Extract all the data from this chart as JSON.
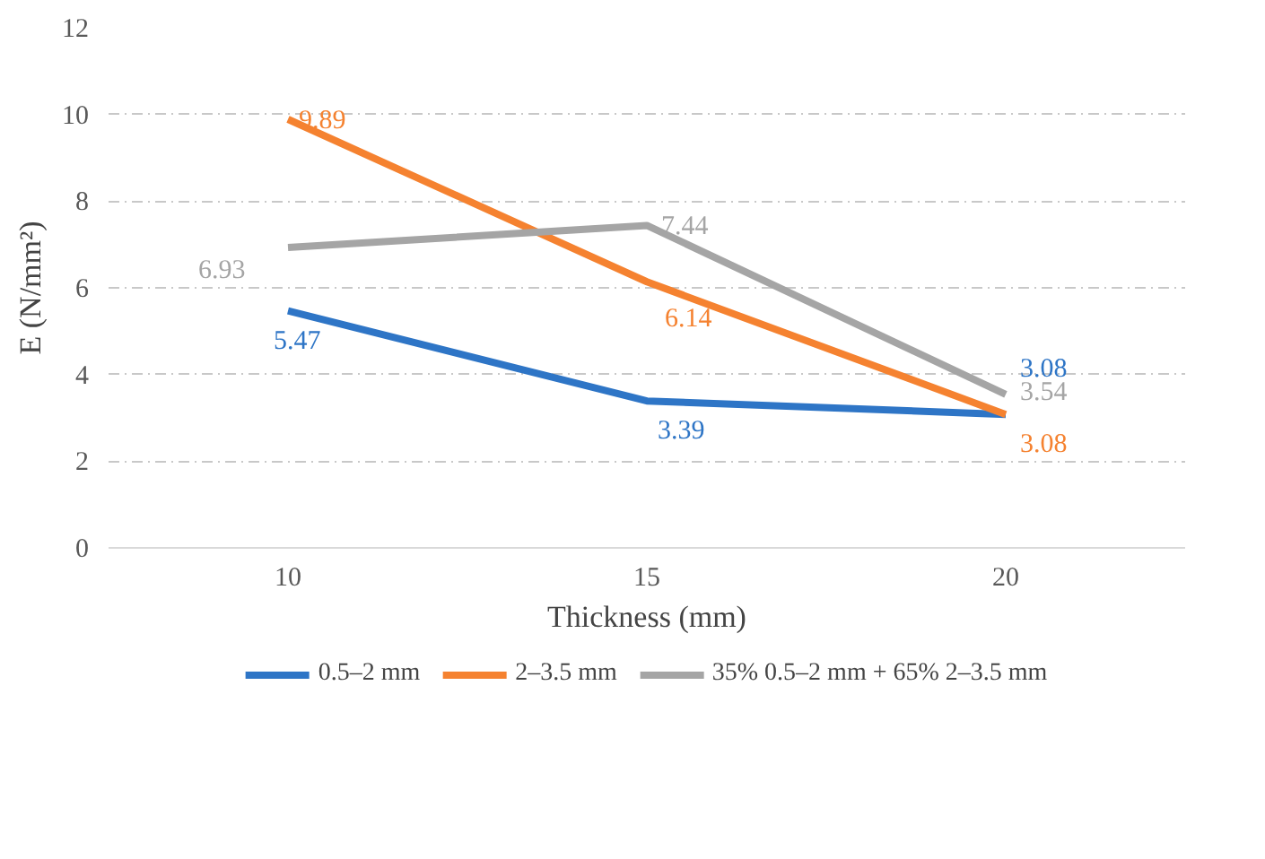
{
  "chart_data": {
    "type": "line",
    "xlabel": "Thickness (mm)",
    "ylabel": "E (N/mm²)",
    "categories": [
      "10",
      "15",
      "20"
    ],
    "series": [
      {
        "name": "0.5–2 mm",
        "color": "#2e75c6",
        "values": [
          5.47,
          3.39,
          3.08
        ]
      },
      {
        "name": "2–3.5 mm",
        "color": "#f58230",
        "values": [
          9.89,
          6.14,
          3.08
        ]
      },
      {
        "name": "35% 0.5–2 mm + 65% 2–3.5 mm",
        "color": "#a5a5a5",
        "values": [
          6.93,
          7.44,
          3.54
        ]
      }
    ],
    "ylim": [
      0,
      12
    ],
    "yticks": [
      0,
      2,
      4,
      6,
      8,
      10,
      12
    ],
    "grid": "y",
    "legend": "bottom",
    "data_labels": true,
    "marker": "none",
    "line_style": "solid"
  }
}
